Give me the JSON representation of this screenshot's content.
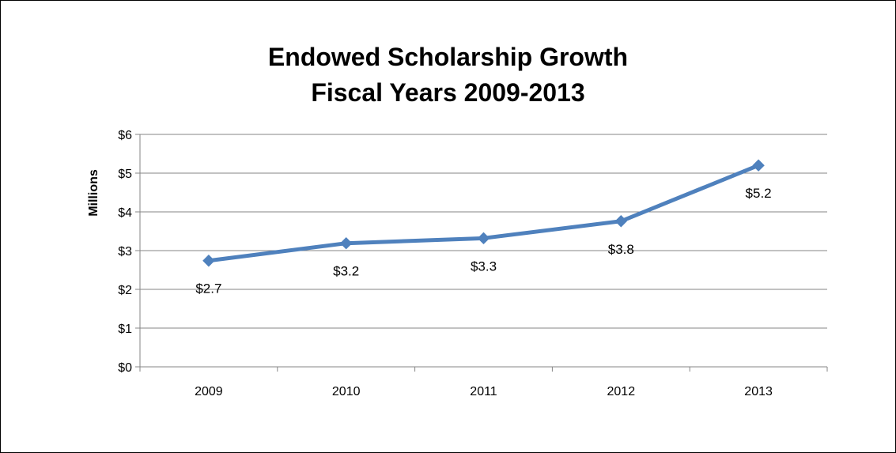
{
  "chart_data": {
    "type": "line",
    "title": "Endowed Scholarship Growth",
    "subtitle": "Fiscal Years 2009-2013",
    "xlabel": "",
    "ylabel": "Millions",
    "categories": [
      "2009",
      "2010",
      "2011",
      "2012",
      "2013"
    ],
    "series": [
      {
        "values": [
          2.74,
          3.19,
          3.32,
          3.76,
          5.2
        ],
        "labels": [
          "$2.7",
          "$3.2",
          "$3.3",
          "$3.8",
          "$5.2"
        ],
        "color": "#4f81bd",
        "marker": "diamond"
      }
    ],
    "ylim": [
      0,
      6
    ],
    "yticks": [
      0,
      1,
      2,
      3,
      4,
      5,
      6
    ],
    "ytick_labels": [
      "$0",
      "$1",
      "$2",
      "$3",
      "$4",
      "$5",
      "$6"
    ],
    "grid": true,
    "legend": "none",
    "colors": {
      "line": "#4f81bd",
      "grid": "#868686",
      "axis": "#868686"
    }
  }
}
